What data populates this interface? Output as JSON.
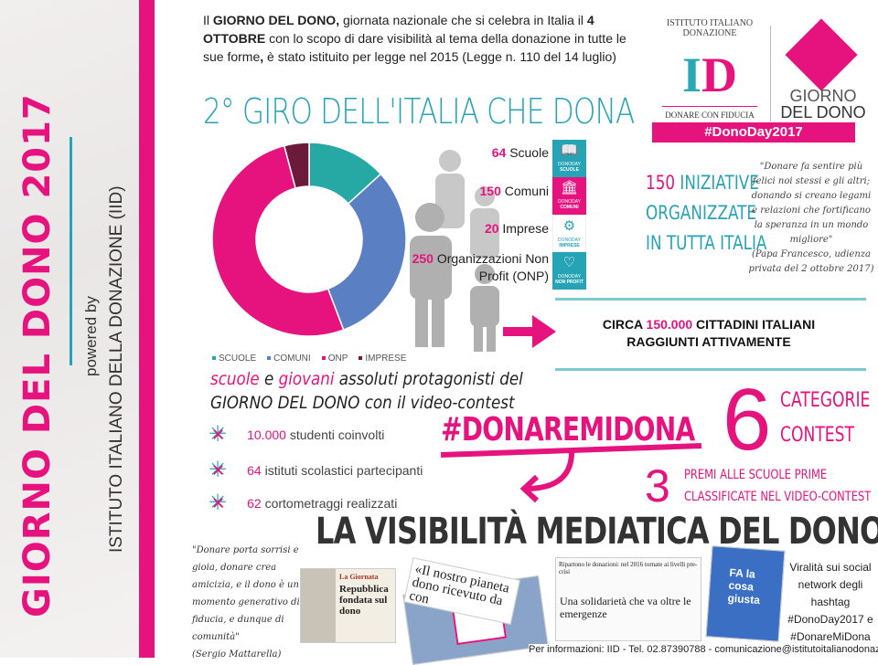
{
  "sidebar": {
    "title": "GIORNO DEL DONO 2017",
    "powered_by": "powered by",
    "organization": "ISTITUTO ITALIANO DELLA DONAZIONE (IID)"
  },
  "intro": {
    "p1": "Il ",
    "b1": "GIORNO DEL DONO,",
    "p2": " giornata nazionale che si celebra in Italia il ",
    "b2": "4 OTTOBRE",
    "p3": " con lo scopo di dare visibilità al tema della donazione in tutte le sue forme",
    "b3": ",",
    "p4": " è stato istituito per legge nel 2015 (Legge n. 110 del 14 luglio)"
  },
  "heading": "2° GIRO DELL'ITALIA CHE DONA",
  "logo": {
    "arc_text": "ISTITUTO ITALIANO DONAZIONE",
    "mark": "ID",
    "motto": "DONARE CON FIDUCIA",
    "giorno": "GIORNO",
    "del_dono": "DEL DONO",
    "hashtag": "#DonoDay2017"
  },
  "chart_data": {
    "type": "pie",
    "variant": "donut",
    "categories": [
      "SCUOLE",
      "COMUNI",
      "ONP",
      "IMPRESE"
    ],
    "values": [
      64,
      150,
      250,
      20
    ],
    "colors": [
      "#26a8a5",
      "#5a7fc2",
      "#e6137f",
      "#6b1a3a"
    ],
    "legend": "bottom"
  },
  "stats": [
    {
      "num": "64",
      "label": "Scuole"
    },
    {
      "num": "150",
      "label": "Comuni"
    },
    {
      "num": "20",
      "label": "Imprese"
    },
    {
      "num": "250",
      "label": "Organizzazioni Non Profit (ONP)"
    }
  ],
  "tiles": [
    {
      "icon": "book-icon",
      "small": "DONODAY",
      "label": "SCUOLE",
      "color": "#26a3b5"
    },
    {
      "icon": "building-icon",
      "small": "DONODAY",
      "label": "COMUNI",
      "color": "#e6137f"
    },
    {
      "icon": "gears-icon",
      "small": "DONODAY",
      "label": "IMPRESE",
      "color": "#ffffff"
    },
    {
      "icon": "heart-icon",
      "small": "DONODAY",
      "label": "NON PROFIT",
      "color": "#26a3b5"
    }
  ],
  "iniziative": {
    "num": "150",
    "l1": "INIZIATIVE",
    "l2": "ORGANIZZATE",
    "l3": "IN TUTTA ITALIA"
  },
  "quote_pope": {
    "text": "\"Donare fa sentire più felici noi stessi e gli altri; donando si creano legami e relazioni che fortificano la speranza in un mondo migliore\"",
    "source": "(Papa Francesco, udienza privata del 2 ottobre 2017)"
  },
  "circa": {
    "pre": "CIRCA ",
    "num": "150.000",
    "post": " CITTADINI ITALIANI",
    "l2": "RAGGIUNTI ATTIVAMENTE"
  },
  "protagonisti": {
    "w1": "scuole",
    "w2": " e ",
    "w3": "giovani",
    "w4": " assoluti protagonisti del",
    "l2": "GIORNO DEL DONO con il video-contest"
  },
  "bullets": [
    {
      "num": "10.000",
      "text": " studenti coinvolti"
    },
    {
      "num": "64",
      "text": " istituti scolastici partecipanti"
    },
    {
      "num": "62",
      "text": " cortometraggi realizzati"
    }
  ],
  "contest": {
    "hashtag": "#DONAREMIDONA",
    "six": "6",
    "cat1": "CATEGORIE",
    "cat2": "CONTEST",
    "three": "3",
    "premi1": "PREMI ALLE SCUOLE PRIME",
    "premi2": "CLASSIFICATE NEL VIDEO-CONTEST"
  },
  "media": {
    "title": "LA VISIBILITÀ MEDIATICA DEL DONO",
    "quote": "\"Donare porta sorrisi e gioia, donare crea amicizia, e il dono è un momento generativo di fiducia, e dunque di comunità\"",
    "quote_source": "(Sergio Mattarella)",
    "clip1_kicker": "La Giornata",
    "clip1_headline": "Repubblica fondata sul dono",
    "clip2_headline": "«Il nostro pianeta dono ricevuto da con",
    "clip3_top": "Ripartono le donazioni: nel 2016 tornate ai livelli pre-crisi",
    "clip3_headline": "Una solidarietà che va oltre le emergenze",
    "tv_text": "FA la cosa giusta",
    "viral": "Viralità sui social network degli hashtag #DonoDay2017 e #DonareMiDona"
  },
  "footer": "Per informazioni: IID - Tel. 02.87390788 - comunicazione@istitutoitalianodonazione.it"
}
